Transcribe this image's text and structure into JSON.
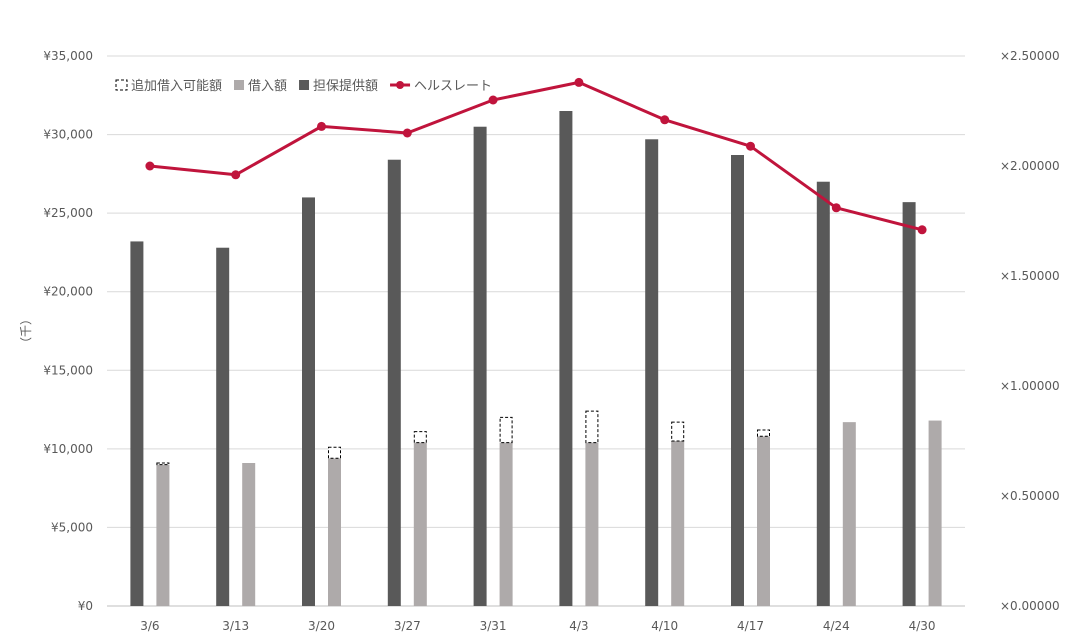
{
  "chart_data": {
    "type": "bar",
    "categories": [
      "3/6",
      "3/13",
      "3/20",
      "3/27",
      "3/31",
      "4/3",
      "4/10",
      "4/17",
      "4/24",
      "4/30"
    ],
    "series": [
      {
        "name": "担保提供額",
        "kind": "bar",
        "axis": "left",
        "color": "#595959",
        "values": [
          23200,
          22800,
          26000,
          28400,
          30500,
          31500,
          29700,
          28700,
          27000,
          25700
        ]
      },
      {
        "name": "借入額",
        "kind": "bar",
        "axis": "left",
        "color": "#AEAAAA",
        "values": [
          9000,
          9100,
          9400,
          10400,
          10400,
          10400,
          10500,
          10800,
          11700,
          11800
        ]
      },
      {
        "name": "追加借入可能額",
        "kind": "stacked-dashed",
        "axis": "left",
        "color": "#000000",
        "values": [
          100,
          0,
          700,
          700,
          1600,
          2000,
          1200,
          400,
          0,
          0
        ]
      },
      {
        "name": "ヘルスレート",
        "kind": "line",
        "axis": "right",
        "color": "#C0143C",
        "values": [
          2.0,
          1.96,
          2.18,
          2.15,
          2.3,
          2.38,
          2.21,
          2.09,
          1.81,
          1.71
        ]
      }
    ],
    "y_left": {
      "label": "（千）",
      "min": 0,
      "max": 35000,
      "step": 5000,
      "ticks": [
        "¥0",
        "¥5,000",
        "¥10,000",
        "¥15,000",
        "¥20,000",
        "¥25,000",
        "¥30,000",
        "¥35,000"
      ]
    },
    "y_right": {
      "min": 0,
      "max": 2.5,
      "step": 0.5,
      "ticks": [
        "×0.00000",
        "×0.50000",
        "×1.00000",
        "×1.50000",
        "×2.00000",
        "×2.50000"
      ]
    },
    "legend": {
      "position": "top-left",
      "items": [
        "追加借入可能額",
        "借入額",
        "担保提供額",
        "ヘルスレート"
      ]
    },
    "grid": true
  }
}
